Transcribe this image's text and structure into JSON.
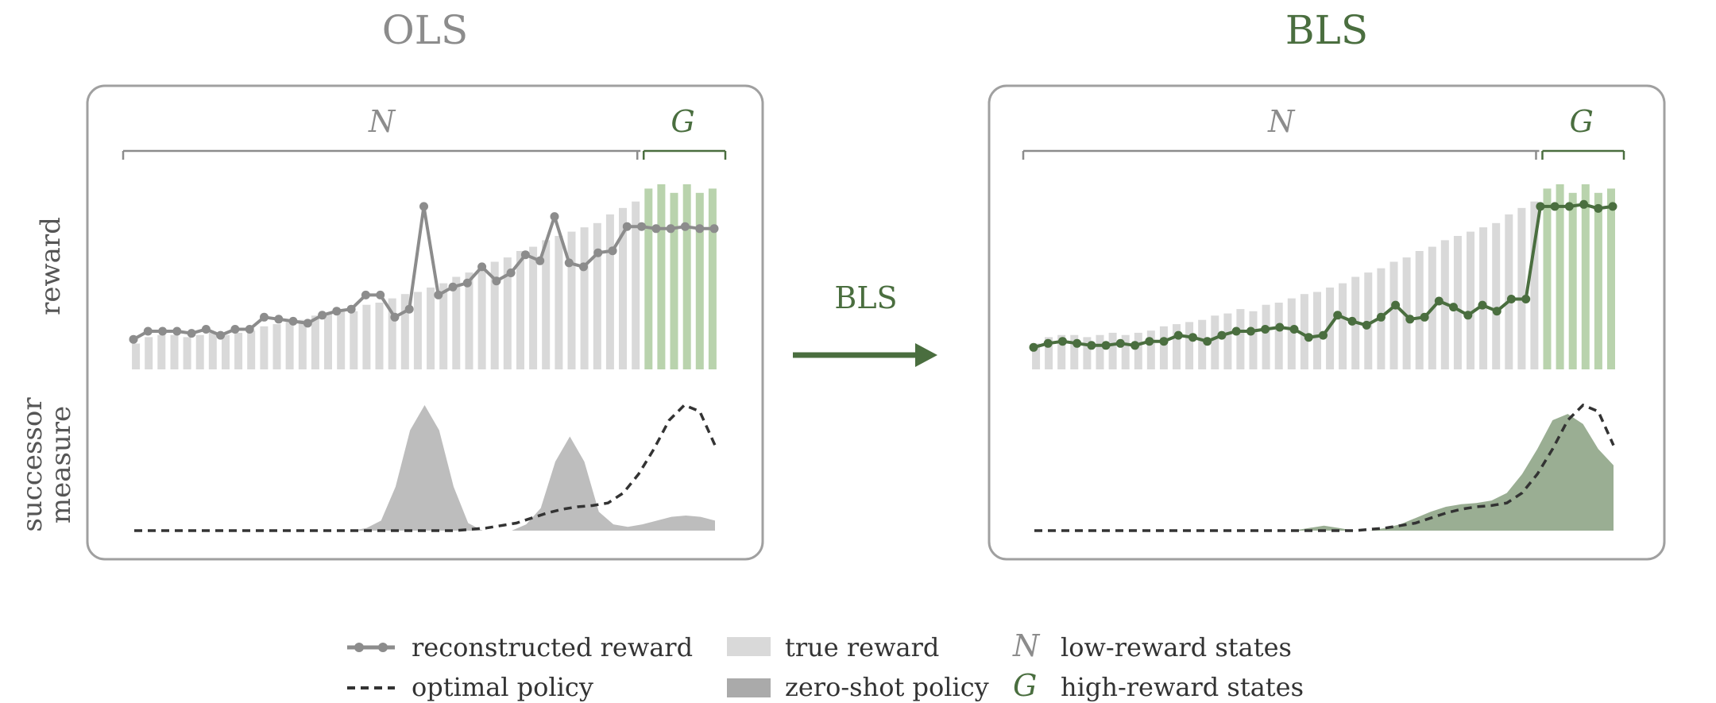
{
  "colors": {
    "gray": "#8c8c8c",
    "green": "#4a6e3f",
    "true_reward": "#d9d9d9",
    "high_reward_bar": "#b9d3ad",
    "zero_shot_gray": "#bdbdbd",
    "zero_shot_green": "#9aae93",
    "dashed": "#333333",
    "panel_border": "#a0a0a0"
  },
  "panels": {
    "left_title": "OLS",
    "right_title": "BLS",
    "n_label": "N",
    "g_label": "G",
    "y_label_reward": "reward",
    "y_label_successor_1": "successor",
    "y_label_successor_2": "measure"
  },
  "arrow": {
    "label": "BLS"
  },
  "legend": {
    "reconstructed_reward": "reconstructed reward",
    "optimal_policy": "optimal policy",
    "true_reward": "true reward",
    "zero_shot_policy": "zero-shot policy",
    "n_symbol": "N",
    "n_desc": "low-reward states",
    "g_symbol": "G",
    "g_desc": "high-reward states"
  },
  "chart_data": [
    {
      "type": "bar",
      "name": "true_reward",
      "values": [
        0.12,
        0.15,
        0.16,
        0.16,
        0.15,
        0.16,
        0.17,
        0.16,
        0.17,
        0.18,
        0.2,
        0.21,
        0.22,
        0.23,
        0.25,
        0.26,
        0.28,
        0.27,
        0.3,
        0.31,
        0.33,
        0.35,
        0.36,
        0.38,
        0.4,
        0.43,
        0.45,
        0.47,
        0.5,
        0.52,
        0.55,
        0.57,
        0.6,
        0.62,
        0.64,
        0.66,
        0.68,
        0.72,
        0.75,
        0.78,
        0.84,
        0.86,
        0.82,
        0.86,
        0.82,
        0.84
      ],
      "high_start_index": 40
    },
    {
      "type": "line",
      "name": "reconstructed_reward_ols",
      "values": [
        0.09,
        0.13,
        0.13,
        0.13,
        0.12,
        0.14,
        0.11,
        0.14,
        0.14,
        0.2,
        0.19,
        0.18,
        0.17,
        0.21,
        0.23,
        0.24,
        0.31,
        0.31,
        0.2,
        0.24,
        0.75,
        0.31,
        0.35,
        0.37,
        0.45,
        0.38,
        0.42,
        0.51,
        0.48,
        0.7,
        0.47,
        0.45,
        0.52,
        0.53,
        0.65,
        0.65,
        0.64,
        0.64,
        0.65,
        0.64,
        0.64
      ]
    },
    {
      "type": "line",
      "name": "reconstructed_reward_bls",
      "values": [
        0.05,
        0.07,
        0.08,
        0.07,
        0.06,
        0.06,
        0.07,
        0.06,
        0.08,
        0.08,
        0.11,
        0.1,
        0.08,
        0.11,
        0.13,
        0.13,
        0.14,
        0.15,
        0.14,
        0.1,
        0.11,
        0.21,
        0.18,
        0.16,
        0.2,
        0.26,
        0.19,
        0.2,
        0.28,
        0.25,
        0.21,
        0.26,
        0.23,
        0.29,
        0.29,
        0.75,
        0.75,
        0.75,
        0.76,
        0.74,
        0.75
      ]
    },
    {
      "type": "area",
      "name": "zero_shot_ols",
      "values": [
        0,
        0,
        0,
        0,
        0,
        0,
        0,
        0,
        0,
        0,
        0,
        0,
        0,
        0,
        0,
        0,
        0.02,
        0.08,
        0.35,
        0.8,
        1.0,
        0.8,
        0.35,
        0.06,
        0,
        0,
        0,
        0.05,
        0.18,
        0.55,
        0.75,
        0.55,
        0.15,
        0.05,
        0.03,
        0.05,
        0.08,
        0.11,
        0.12,
        0.11,
        0.08
      ],
      "ylim": [
        0,
        1
      ]
    },
    {
      "type": "area",
      "name": "zero_shot_bls",
      "values": [
        0,
        0,
        0,
        0,
        0,
        0,
        0,
        0,
        0,
        0,
        0,
        0,
        0,
        0,
        0,
        0,
        0,
        0,
        0.02,
        0.04,
        0.02,
        0,
        0,
        0.02,
        0.05,
        0.1,
        0.15,
        0.19,
        0.21,
        0.22,
        0.24,
        0.3,
        0.45,
        0.65,
        0.88,
        0.93,
        0.85,
        0.65,
        0.52
      ],
      "ylim": [
        0,
        1
      ]
    },
    {
      "type": "line",
      "name": "optimal_policy",
      "values": [
        0,
        0,
        0,
        0,
        0,
        0,
        0,
        0,
        0,
        0,
        0,
        0,
        0,
        0,
        0,
        0,
        0,
        0,
        0,
        0,
        0,
        0,
        0.01,
        0.02,
        0.04,
        0.06,
        0.1,
        0.14,
        0.17,
        0.19,
        0.2,
        0.22,
        0.3,
        0.45,
        0.65,
        0.88,
        1.0,
        0.95,
        0.68
      ],
      "ylim": [
        0,
        1
      ]
    }
  ]
}
